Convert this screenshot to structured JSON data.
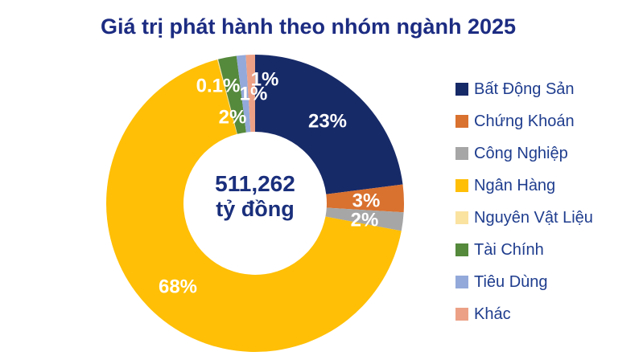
{
  "chart_data": {
    "type": "pie",
    "subtype": "donut",
    "title": "Giá trị phát hành theo nhóm ngành 2025",
    "center_total": "511,262",
    "center_unit": "tỷ đồng",
    "values_unit": "percent",
    "start_angle_deg": 0,
    "direction": "clockwise",
    "legend_position": "right",
    "colors": {
      "title_text": "#1c2c82",
      "center_text": "#1a2f7c",
      "legend_text": "#1f3d8e",
      "label_text": "#ffffff"
    },
    "segments": [
      {
        "key": "bat-dong-san",
        "label": "Bất Động Sản",
        "value": 23,
        "display": "23%",
        "color": "#172a68"
      },
      {
        "key": "chung-khoan",
        "label": "Chứng Khoán",
        "value": 3,
        "display": "3%",
        "color": "#d9712f"
      },
      {
        "key": "cong-nghiep",
        "label": "Công Nghiệp",
        "value": 2,
        "display": "2%",
        "color": "#a6a6a6"
      },
      {
        "key": "ngan-hang",
        "label": "Ngân Hàng",
        "value": 68,
        "display": "68%",
        "color": "#ffbf06"
      },
      {
        "key": "nguyen-vat-lieu",
        "label": "Nguyên Vật Liệu",
        "value": 0.1,
        "display": "0.1%",
        "color": "#fae2a0"
      },
      {
        "key": "tai-chinh",
        "label": "Tài Chính",
        "value": 2,
        "display": "2%",
        "color": "#55893c"
      },
      {
        "key": "tieu-dung",
        "label": "Tiêu Dùng",
        "value": 1,
        "display": "1%",
        "color": "#93a9da"
      },
      {
        "key": "khac",
        "label": "Khác",
        "value": 1,
        "display": "1%",
        "color": "#eca186"
      }
    ]
  }
}
